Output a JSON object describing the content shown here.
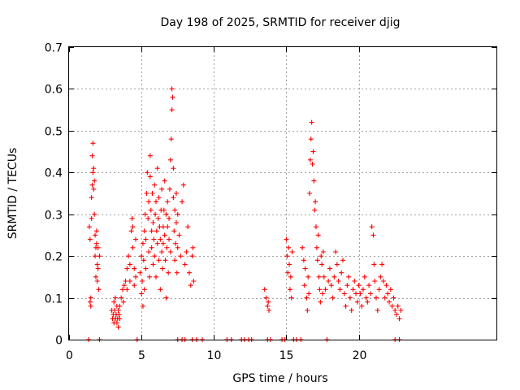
{
  "chart_data": {
    "type": "scatter",
    "title": "Day 198 of 2025, SRMTID for receiver djig",
    "xlabel": "GPS time / hours",
    "ylabel": "SRMTID / TECUs",
    "xlim": [
      0,
      29.5
    ],
    "ylim": [
      0,
      0.7
    ],
    "xticks": [
      0,
      5,
      10,
      15,
      20
    ],
    "yticks": [
      0,
      0.1,
      0.2,
      0.3,
      0.4,
      0.5,
      0.6,
      0.7
    ],
    "xtick_labels": [
      "0",
      "5",
      "10",
      "15",
      "20"
    ],
    "ytick_labels": [
      "0",
      "0.1",
      "0.2",
      "0.3",
      "0.4",
      "0.5",
      "0.6",
      "0.7"
    ],
    "grid": true,
    "marker": "+",
    "series_color": "#ff0000",
    "series": [
      {
        "name": "SRMTID",
        "points": [
          [
            1.35,
            0.0
          ],
          [
            1.4,
            0.27
          ],
          [
            1.45,
            0.24
          ],
          [
            1.45,
            0.09
          ],
          [
            1.5,
            0.1
          ],
          [
            1.5,
            0.08
          ],
          [
            1.55,
            0.34
          ],
          [
            1.55,
            0.29
          ],
          [
            1.6,
            0.37
          ],
          [
            1.6,
            0.44
          ],
          [
            1.65,
            0.47
          ],
          [
            1.65,
            0.4
          ],
          [
            1.7,
            0.41
          ],
          [
            1.7,
            0.36
          ],
          [
            1.75,
            0.38
          ],
          [
            1.75,
            0.3
          ],
          [
            1.8,
            0.25
          ],
          [
            1.8,
            0.2
          ],
          [
            1.85,
            0.22
          ],
          [
            1.85,
            0.15
          ],
          [
            1.9,
            0.26
          ],
          [
            1.9,
            0.23
          ],
          [
            1.95,
            0.18
          ],
          [
            1.95,
            0.14
          ],
          [
            2.0,
            0.22
          ],
          [
            2.0,
            0.17
          ],
          [
            2.05,
            0.12
          ],
          [
            2.1,
            0.2
          ],
          [
            2.1,
            0.0
          ],
          [
            2.95,
            0.07
          ],
          [
            3.0,
            0.05
          ],
          [
            3.05,
            0.06
          ],
          [
            3.1,
            0.04
          ],
          [
            3.1,
            0.09
          ],
          [
            3.15,
            0.07
          ],
          [
            3.2,
            0.05
          ],
          [
            3.2,
            0.1
          ],
          [
            3.25,
            0.06
          ],
          [
            3.3,
            0.08
          ],
          [
            3.3,
            0.04
          ],
          [
            3.35,
            0.05
          ],
          [
            3.4,
            0.07
          ],
          [
            3.4,
            0.03
          ],
          [
            3.45,
            0.06
          ],
          [
            3.5,
            0.08
          ],
          [
            3.5,
            0.05
          ],
          [
            3.6,
            0.1
          ],
          [
            3.7,
            0.12
          ],
          [
            3.75,
            0.09
          ],
          [
            3.8,
            0.13
          ],
          [
            3.9,
            0.14
          ],
          [
            4.0,
            0.17
          ],
          [
            4.0,
            0.12
          ],
          [
            4.1,
            0.2
          ],
          [
            4.2,
            0.14
          ],
          [
            4.2,
            0.18
          ],
          [
            4.3,
            0.26
          ],
          [
            4.35,
            0.29
          ],
          [
            4.4,
            0.22
          ],
          [
            4.4,
            0.27
          ],
          [
            4.5,
            0.17
          ],
          [
            4.5,
            0.13
          ],
          [
            4.6,
            0.15
          ],
          [
            4.6,
            0.24
          ],
          [
            4.7,
            0.0
          ],
          [
            4.9,
            0.16
          ],
          [
            5.0,
            0.2
          ],
          [
            5.0,
            0.11
          ],
          [
            5.05,
            0.14
          ],
          [
            5.1,
            0.23
          ],
          [
            5.1,
            0.08
          ],
          [
            5.15,
            0.19
          ],
          [
            5.2,
            0.26
          ],
          [
            5.2,
            0.12
          ],
          [
            5.25,
            0.3
          ],
          [
            5.3,
            0.24
          ],
          [
            5.3,
            0.17
          ],
          [
            5.35,
            0.35
          ],
          [
            5.4,
            0.4
          ],
          [
            5.45,
            0.29
          ],
          [
            5.5,
            0.33
          ],
          [
            5.5,
            0.21
          ],
          [
            5.55,
            0.15
          ],
          [
            5.6,
            0.39
          ],
          [
            5.6,
            0.44
          ],
          [
            5.65,
            0.31
          ],
          [
            5.7,
            0.26
          ],
          [
            5.7,
            0.22
          ],
          [
            5.75,
            0.35
          ],
          [
            5.8,
            0.18
          ],
          [
            5.8,
            0.28
          ],
          [
            5.85,
            0.24
          ],
          [
            5.9,
            0.37
          ],
          [
            5.9,
            0.2
          ],
          [
            5.95,
            0.3
          ],
          [
            6.0,
            0.33
          ],
          [
            6.0,
            0.15
          ],
          [
            6.05,
            0.26
          ],
          [
            6.1,
            0.41
          ],
          [
            6.1,
            0.23
          ],
          [
            6.15,
            0.29
          ],
          [
            6.2,
            0.19
          ],
          [
            6.2,
            0.34
          ],
          [
            6.25,
            0.27
          ],
          [
            6.3,
            0.12
          ],
          [
            6.3,
            0.24
          ],
          [
            6.35,
            0.31
          ],
          [
            6.4,
            0.36
          ],
          [
            6.4,
            0.21
          ],
          [
            6.45,
            0.17
          ],
          [
            6.5,
            0.27
          ],
          [
            6.5,
            0.23
          ],
          [
            6.55,
            0.31
          ],
          [
            6.6,
            0.38
          ],
          [
            6.6,
            0.25
          ],
          [
            6.65,
            0.19
          ],
          [
            6.7,
            0.3
          ],
          [
            6.7,
            0.1
          ],
          [
            6.75,
            0.22
          ],
          [
            6.8,
            0.27
          ],
          [
            6.8,
            0.33
          ],
          [
            6.85,
            0.16
          ],
          [
            6.9,
            0.24
          ],
          [
            6.9,
            0.29
          ],
          [
            6.95,
            0.36
          ],
          [
            7.0,
            0.43
          ],
          [
            7.0,
            0.21
          ],
          [
            7.05,
            0.48
          ],
          [
            7.1,
            0.55
          ],
          [
            7.1,
            0.6
          ],
          [
            7.15,
            0.58
          ],
          [
            7.2,
            0.41
          ],
          [
            7.2,
            0.34
          ],
          [
            7.25,
            0.26
          ],
          [
            7.3,
            0.31
          ],
          [
            7.3,
            0.19
          ],
          [
            7.35,
            0.23
          ],
          [
            7.4,
            0.28
          ],
          [
            7.4,
            0.35
          ],
          [
            7.45,
            0.16
          ],
          [
            7.5,
            0.22
          ],
          [
            7.5,
            0.3
          ],
          [
            7.6,
            0.25
          ],
          [
            7.7,
            0.2
          ],
          [
            7.8,
            0.33
          ],
          [
            7.9,
            0.37
          ],
          [
            8.0,
            0.18
          ],
          [
            8.1,
            0.21
          ],
          [
            8.2,
            0.27
          ],
          [
            8.3,
            0.16
          ],
          [
            8.4,
            0.13
          ],
          [
            8.5,
            0.2
          ],
          [
            8.55,
            0.22
          ],
          [
            8.6,
            0.14
          ],
          [
            7.5,
            0.0
          ],
          [
            7.8,
            0.0
          ],
          [
            8.0,
            0.0
          ],
          [
            8.5,
            0.0
          ],
          [
            8.8,
            0.0
          ],
          [
            9.2,
            0.0
          ],
          [
            10.9,
            0.0
          ],
          [
            11.2,
            0.0
          ],
          [
            11.9,
            0.0
          ],
          [
            12.1,
            0.0
          ],
          [
            12.4,
            0.0
          ],
          [
            12.6,
            0.0
          ],
          [
            13.5,
            0.12
          ],
          [
            13.6,
            0.1
          ],
          [
            13.7,
            0.08
          ],
          [
            13.75,
            0.09
          ],
          [
            13.8,
            0.07
          ],
          [
            13.7,
            0.0
          ],
          [
            13.9,
            0.0
          ],
          [
            14.7,
            0.0
          ],
          [
            14.9,
            0.0
          ],
          [
            15.0,
            0.24
          ],
          [
            15.05,
            0.2
          ],
          [
            15.1,
            0.16
          ],
          [
            15.15,
            0.22
          ],
          [
            15.2,
            0.18
          ],
          [
            15.25,
            0.12
          ],
          [
            15.3,
            0.15
          ],
          [
            15.35,
            0.1
          ],
          [
            15.4,
            0.21
          ],
          [
            15.5,
            0.0
          ],
          [
            15.7,
            0.0
          ],
          [
            16.0,
            0.0
          ],
          [
            16.1,
            0.22
          ],
          [
            16.2,
            0.19
          ],
          [
            16.25,
            0.13
          ],
          [
            16.3,
            0.17
          ],
          [
            16.4,
            0.1
          ],
          [
            16.45,
            0.07
          ],
          [
            16.5,
            0.15
          ],
          [
            16.55,
            0.11
          ],
          [
            16.6,
            0.35
          ],
          [
            16.65,
            0.43
          ],
          [
            16.7,
            0.48
          ],
          [
            16.75,
            0.52
          ],
          [
            16.8,
            0.42
          ],
          [
            16.85,
            0.45
          ],
          [
            16.9,
            0.38
          ],
          [
            16.95,
            0.31
          ],
          [
            17.0,
            0.33
          ],
          [
            17.05,
            0.27
          ],
          [
            17.1,
            0.22
          ],
          [
            17.15,
            0.19
          ],
          [
            17.2,
            0.25
          ],
          [
            17.25,
            0.15
          ],
          [
            17.3,
            0.12
          ],
          [
            17.35,
            0.09
          ],
          [
            17.4,
            0.2
          ],
          [
            17.45,
            0.18
          ],
          [
            17.5,
            0.11
          ],
          [
            17.55,
            0.21
          ],
          [
            17.6,
            0.15
          ],
          [
            17.7,
            0.12
          ],
          [
            17.8,
            0.0
          ],
          [
            17.9,
            0.14
          ],
          [
            18.0,
            0.17
          ],
          [
            18.1,
            0.13
          ],
          [
            18.2,
            0.1
          ],
          [
            18.3,
            0.15
          ],
          [
            18.4,
            0.21
          ],
          [
            18.5,
            0.18
          ],
          [
            18.6,
            0.14
          ],
          [
            18.7,
            0.12
          ],
          [
            18.8,
            0.16
          ],
          [
            18.9,
            0.19
          ],
          [
            19.0,
            0.11
          ],
          [
            19.1,
            0.08
          ],
          [
            19.2,
            0.13
          ],
          [
            19.3,
            0.15
          ],
          [
            19.4,
            0.1
          ],
          [
            19.5,
            0.07
          ],
          [
            19.6,
            0.12
          ],
          [
            19.7,
            0.14
          ],
          [
            19.8,
            0.11
          ],
          [
            19.9,
            0.09
          ],
          [
            20.0,
            0.13
          ],
          [
            20.1,
            0.11
          ],
          [
            20.2,
            0.08
          ],
          [
            20.3,
            0.12
          ],
          [
            20.4,
            0.15
          ],
          [
            20.5,
            0.1
          ],
          [
            20.6,
            0.09
          ],
          [
            20.7,
            0.13
          ],
          [
            20.8,
            0.11
          ],
          [
            20.9,
            0.27
          ],
          [
            21.0,
            0.25
          ],
          [
            21.05,
            0.18
          ],
          [
            21.1,
            0.14
          ],
          [
            21.2,
            0.1
          ],
          [
            21.3,
            0.07
          ],
          [
            21.4,
            0.12
          ],
          [
            21.5,
            0.15
          ],
          [
            21.6,
            0.18
          ],
          [
            21.7,
            0.14
          ],
          [
            21.8,
            0.1
          ],
          [
            21.9,
            0.13
          ],
          [
            22.0,
            0.11
          ],
          [
            22.1,
            0.09
          ],
          [
            22.2,
            0.12
          ],
          [
            22.3,
            0.08
          ],
          [
            22.4,
            0.1
          ],
          [
            22.5,
            0.07
          ],
          [
            22.6,
            0.06
          ],
          [
            22.7,
            0.08
          ],
          [
            22.8,
            0.05
          ],
          [
            22.9,
            0.07
          ],
          [
            22.5,
            0.0
          ],
          [
            22.8,
            0.0
          ]
        ]
      }
    ]
  }
}
